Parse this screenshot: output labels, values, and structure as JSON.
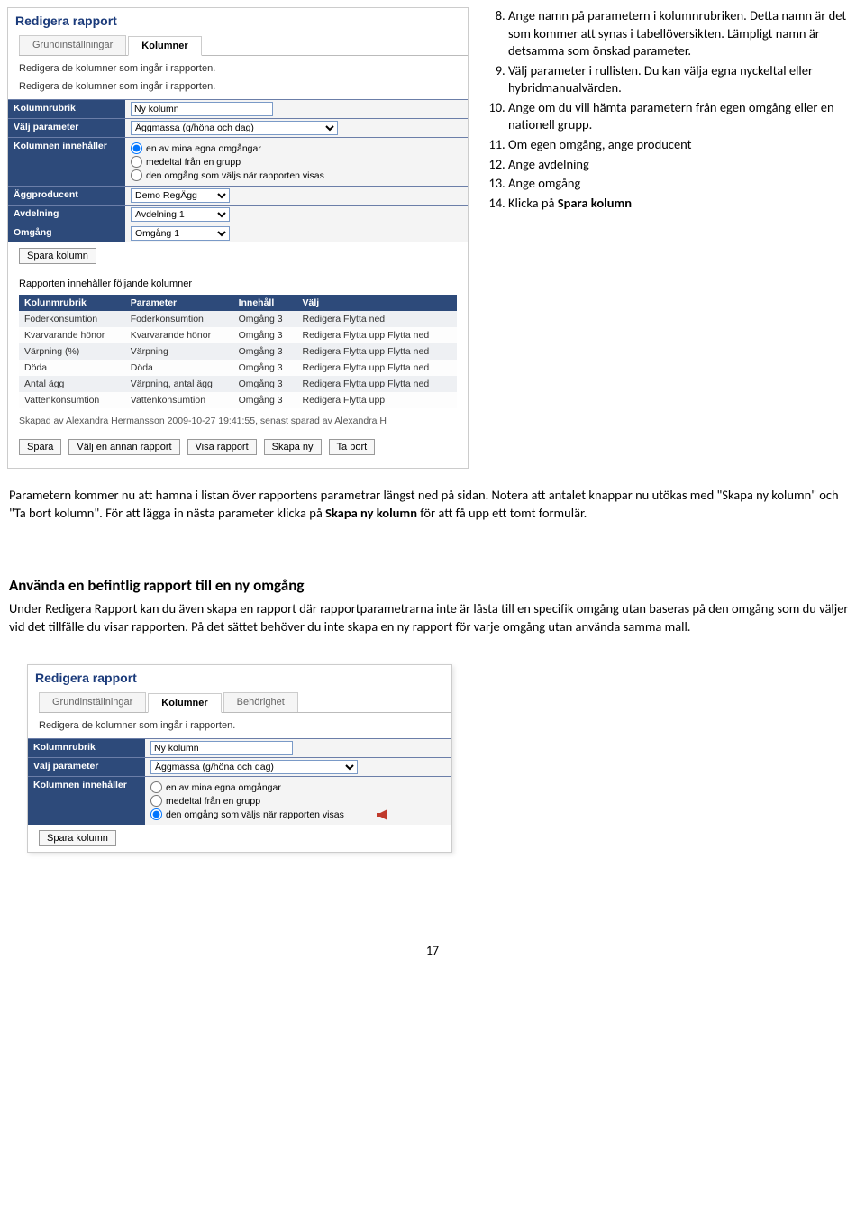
{
  "screenshot1": {
    "title": "Redigera rapport",
    "tabs": [
      "Grundinställningar",
      "Kolumner"
    ],
    "intro1": "Redigera de kolumner som ingår i rapporten.",
    "intro2": "Redigera de kolumner som ingår i rapporten.",
    "form": {
      "kolumnrubrik_label": "Kolumnrubrik",
      "kolumnrubrik_value": "Ny kolumn",
      "valj_param_label": "Välj parameter",
      "valj_param_value": "Äggmassa (g/höna och dag)",
      "innehaller_label": "Kolumnen innehåller",
      "radio1": "en av mina egna omgångar",
      "radio2": "medeltal från en grupp",
      "radio3": "den omgång som väljs när rapporten visas",
      "aggproducent_label": "Äggproducent",
      "aggproducent_value": "Demo RegÄgg",
      "avdelning_label": "Avdelning",
      "avdelning_value": "Avdelning 1",
      "omgang_label": "Omgång",
      "omgang_value": "Omgång 1"
    },
    "spara_kolumn": "Spara kolumn",
    "subhead": "Rapporten innehåller följande kolumner",
    "table_headers": [
      "Kolunmrubrik",
      "Parameter",
      "Innehåll",
      "Välj"
    ],
    "table_rows": [
      [
        "Foderkonsumtion",
        "Foderkonsumtion",
        "Omgång 3",
        "Redigera Flytta ned"
      ],
      [
        "Kvarvarande hönor",
        "Kvarvarande hönor",
        "Omgång 3",
        "Redigera Flytta upp Flytta ned"
      ],
      [
        "Värpning (%)",
        "Värpning",
        "Omgång 3",
        "Redigera Flytta upp Flytta ned"
      ],
      [
        "Döda",
        "Döda",
        "Omgång 3",
        "Redigera Flytta upp Flytta ned"
      ],
      [
        "Antal ägg",
        "Värpning, antal ägg",
        "Omgång 3",
        "Redigera Flytta upp Flytta ned"
      ],
      [
        "Vattenkonsumtion",
        "Vattenkonsumtion",
        "Omgång 3",
        "Redigera Flytta upp"
      ]
    ],
    "footer": "Skapad av Alexandra Hermansson 2009-10-27 19:41:55, senast sparad av Alexandra H",
    "bottom_buttons": [
      "Spara",
      "Välj en annan rapport",
      "Visa rapport",
      "Skapa ny",
      "Ta bort"
    ]
  },
  "instructions": {
    "start": 8,
    "items": [
      "Ange namn på parametern i kolumnrubriken. Detta namn är det som kommer att synas i tabellöversikten. Lämpligt namn är detsamma som önskad parameter.",
      "Välj parameter i rullisten. Du kan välja egna nyckeltal eller hybridmanualvärden.",
      "Ange om du vill hämta parametern från egen omgång eller en nationell grupp.",
      "Om egen omgång, ange producent",
      "Ange avdelning",
      "Ange omgång",
      "Klicka på <b>Spara kolumn</b>"
    ]
  },
  "para1": "Parametern kommer nu att hamna i listan över rapportens parametrar längst ned på sidan. Notera att antalet knappar nu utökas med \"Skapa ny kolumn\" och \"Ta bort kolumn\". För att lägga in nästa parameter klicka på <b>Skapa ny kolumn</b> för att få upp ett tomt formulär.",
  "heading2": "Använda en befintlig rapport till en ny omgång",
  "para2": "Under Redigera Rapport kan du även skapa en rapport där rapportparametrarna inte är låsta till en specifik omgång utan baseras på den omgång som du väljer vid det tillfälle du visar rapporten. På det sättet behöver du inte skapa en ny rapport för varje omgång utan använda samma mall.",
  "screenshot2": {
    "title": "Redigera rapport",
    "tabs": [
      "Grundinställningar",
      "Kolumner",
      "Behörighet"
    ],
    "intro": "Redigera de kolumner som ingår i rapporten.",
    "form": {
      "kolumnrubrik_label": "Kolumnrubrik",
      "kolumnrubrik_value": "Ny kolumn",
      "valj_param_label": "Välj parameter",
      "valj_param_value": "Äggmassa (g/höna och dag)",
      "innehaller_label": "Kolumnen innehåller",
      "radio1": "en av mina egna omgångar",
      "radio2": "medeltal från en grupp",
      "radio3": "den omgång som väljs när rapporten visas"
    },
    "spara_kolumn": "Spara kolumn"
  },
  "page_num": "17"
}
